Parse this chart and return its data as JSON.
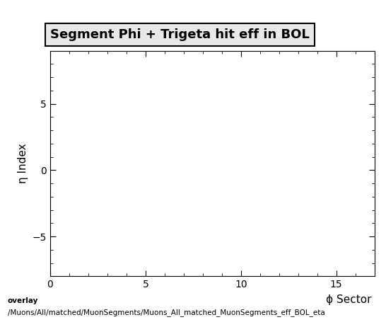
{
  "title": "Segment Phi + Trigeta hit eff in BOL",
  "xlabel": "ϕ Sector",
  "ylabel": "η Index",
  "xlim": [
    0,
    17
  ],
  "ylim": [
    -8,
    9
  ],
  "xticks": [
    0,
    5,
    10,
    15
  ],
  "yticks": [
    -5,
    0,
    5
  ],
  "background_color": "#ffffff",
  "plot_bg_color": "#ffffff",
  "footer_line1": "overlay",
  "footer_line2": "/Muons/All/matched/MuonSegments/Muons_All_matched_MuonSegments_eff_BOL_eta",
  "title_fontsize": 13,
  "axis_label_fontsize": 11,
  "tick_fontsize": 10,
  "footer_fontsize": 7.5
}
